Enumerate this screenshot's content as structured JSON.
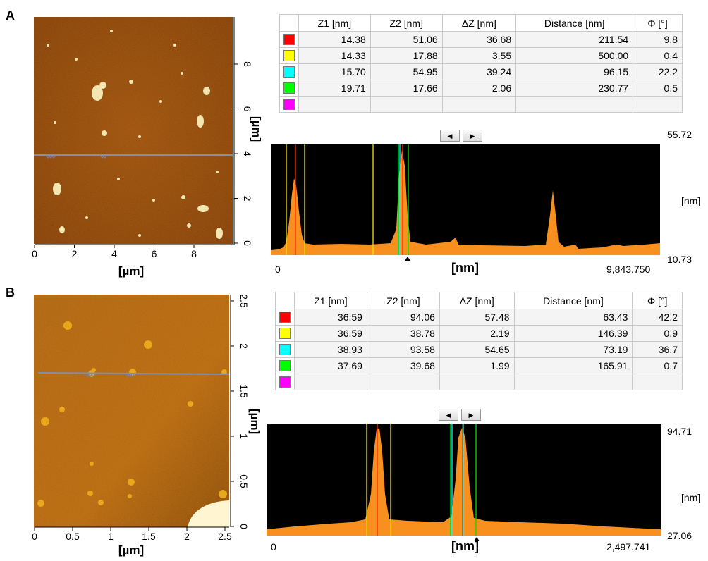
{
  "panels": [
    {
      "label": "A",
      "image": {
        "x_ticks": [
          "0",
          "2",
          "4",
          "6",
          "8"
        ],
        "y_ticks": [
          "0",
          "2",
          "4",
          "6",
          "8"
        ],
        "x_unit": "[µm]",
        "y_unit": "[µm]"
      },
      "table": {
        "headers": [
          "",
          "Z1 [nm]",
          "Z2 [nm]",
          "ΔZ [nm]",
          "Distance [nm]",
          "Φ [°]"
        ],
        "rows": [
          {
            "color": "#ff0000",
            "z1": "14.38",
            "z2": "51.06",
            "dz": "36.68",
            "distance": "211.54",
            "phi": "9.8"
          },
          {
            "color": "#ffff00",
            "z1": "14.33",
            "z2": "17.88",
            "dz": "3.55",
            "distance": "500.00",
            "phi": "0.4"
          },
          {
            "color": "#00ffff",
            "z1": "15.70",
            "z2": "54.95",
            "dz": "39.24",
            "distance": "96.15",
            "phi": "22.2"
          },
          {
            "color": "#00ff00",
            "z1": "19.71",
            "z2": "17.66",
            "dz": "2.06",
            "distance": "230.77",
            "phi": "0.5"
          },
          {
            "color": "#ff00ff",
            "z1": "",
            "z2": "",
            "dz": "",
            "distance": "",
            "phi": ""
          }
        ]
      },
      "profile": {
        "y_max": "55.72",
        "y_min": "10.73",
        "y_unit": "[nm]",
        "x_min": "0",
        "x_max": "9,843.750",
        "x_unit": "[nm]"
      }
    },
    {
      "label": "B",
      "image": {
        "x_ticks": [
          "0",
          "0.5",
          "1",
          "1.5",
          "2",
          "2.5"
        ],
        "y_ticks": [
          "0",
          "0.5",
          "1",
          "1.5",
          "2",
          "2.5"
        ],
        "x_unit": "[µm]",
        "y_unit": "[µm]"
      },
      "table": {
        "headers": [
          "",
          "Z1 [nm]",
          "Z2 [nm]",
          "ΔZ [nm]",
          "Distance [nm]",
          "Φ [°]"
        ],
        "rows": [
          {
            "color": "#ff0000",
            "z1": "36.59",
            "z2": "94.06",
            "dz": "57.48",
            "distance": "63.43",
            "phi": "42.2"
          },
          {
            "color": "#ffff00",
            "z1": "36.59",
            "z2": "38.78",
            "dz": "2.19",
            "distance": "146.39",
            "phi": "0.9"
          },
          {
            "color": "#00ffff",
            "z1": "38.93",
            "z2": "93.58",
            "dz": "54.65",
            "distance": "73.19",
            "phi": "36.7"
          },
          {
            "color": "#00ff00",
            "z1": "37.69",
            "z2": "39.68",
            "dz": "1.99",
            "distance": "165.91",
            "phi": "0.7"
          },
          {
            "color": "#ff00ff",
            "z1": "",
            "z2": "",
            "dz": "",
            "distance": "",
            "phi": ""
          }
        ]
      },
      "profile": {
        "y_max": "94.71",
        "y_min": "27.06",
        "y_unit": "[nm]",
        "x_min": "0",
        "x_max": "2,497.741",
        "x_unit": "[nm]"
      }
    }
  ]
}
